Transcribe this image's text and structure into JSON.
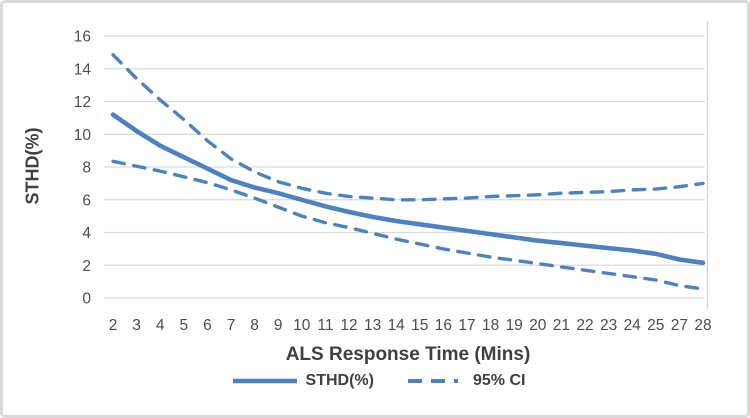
{
  "chart": {
    "accent_color": "#4f81bd",
    "gridline_color": "#d9d9d9",
    "plot_border_color": "#d4d4d4",
    "text_color": "#4d4d4d",
    "legend": [
      {
        "label": "STHD(%)",
        "style": "solid"
      },
      {
        "label": "95% CI",
        "style": "dashed"
      }
    ]
  },
  "chart_data": {
    "type": "line",
    "title": "",
    "xlabel": "ALS Response Time (Mins)",
    "ylabel": "STHD(%)",
    "ylim": [
      0,
      16
    ],
    "yticks": [
      0,
      2,
      4,
      6,
      8,
      10,
      12,
      14,
      16
    ],
    "grid": true,
    "legend_position": "bottom",
    "categories": [
      2,
      3,
      4,
      5,
      6,
      7,
      8,
      9,
      10,
      11,
      12,
      13,
      14,
      15,
      16,
      17,
      18,
      19,
      20,
      21,
      22,
      23,
      24,
      25,
      27,
      28
    ],
    "series": [
      {
        "name": "STHD(%)",
        "style": "solid",
        "values": [
          11.2,
          10.2,
          9.3,
          8.6,
          7.9,
          7.2,
          6.75,
          6.4,
          6.0,
          5.6,
          5.25,
          4.95,
          4.7,
          4.5,
          4.3,
          4.1,
          3.9,
          3.7,
          3.5,
          3.35,
          3.2,
          3.05,
          2.9,
          2.7,
          2.35,
          2.15
        ]
      },
      {
        "name": "95% CI upper",
        "style": "dashed",
        "values": [
          14.85,
          13.4,
          12.1,
          10.9,
          9.6,
          8.5,
          7.7,
          7.1,
          6.7,
          6.4,
          6.2,
          6.1,
          6.0,
          6.0,
          6.05,
          6.1,
          6.2,
          6.25,
          6.3,
          6.4,
          6.45,
          6.5,
          6.6,
          6.65,
          6.8,
          7.0
        ]
      },
      {
        "name": "95% CI lower",
        "style": "dashed",
        "values": [
          8.35,
          8.05,
          7.75,
          7.4,
          7.05,
          6.6,
          6.1,
          5.55,
          5.0,
          4.6,
          4.3,
          3.95,
          3.6,
          3.3,
          3.0,
          2.75,
          2.5,
          2.3,
          2.1,
          1.9,
          1.7,
          1.5,
          1.3,
          1.1,
          0.75,
          0.55
        ]
      }
    ]
  }
}
